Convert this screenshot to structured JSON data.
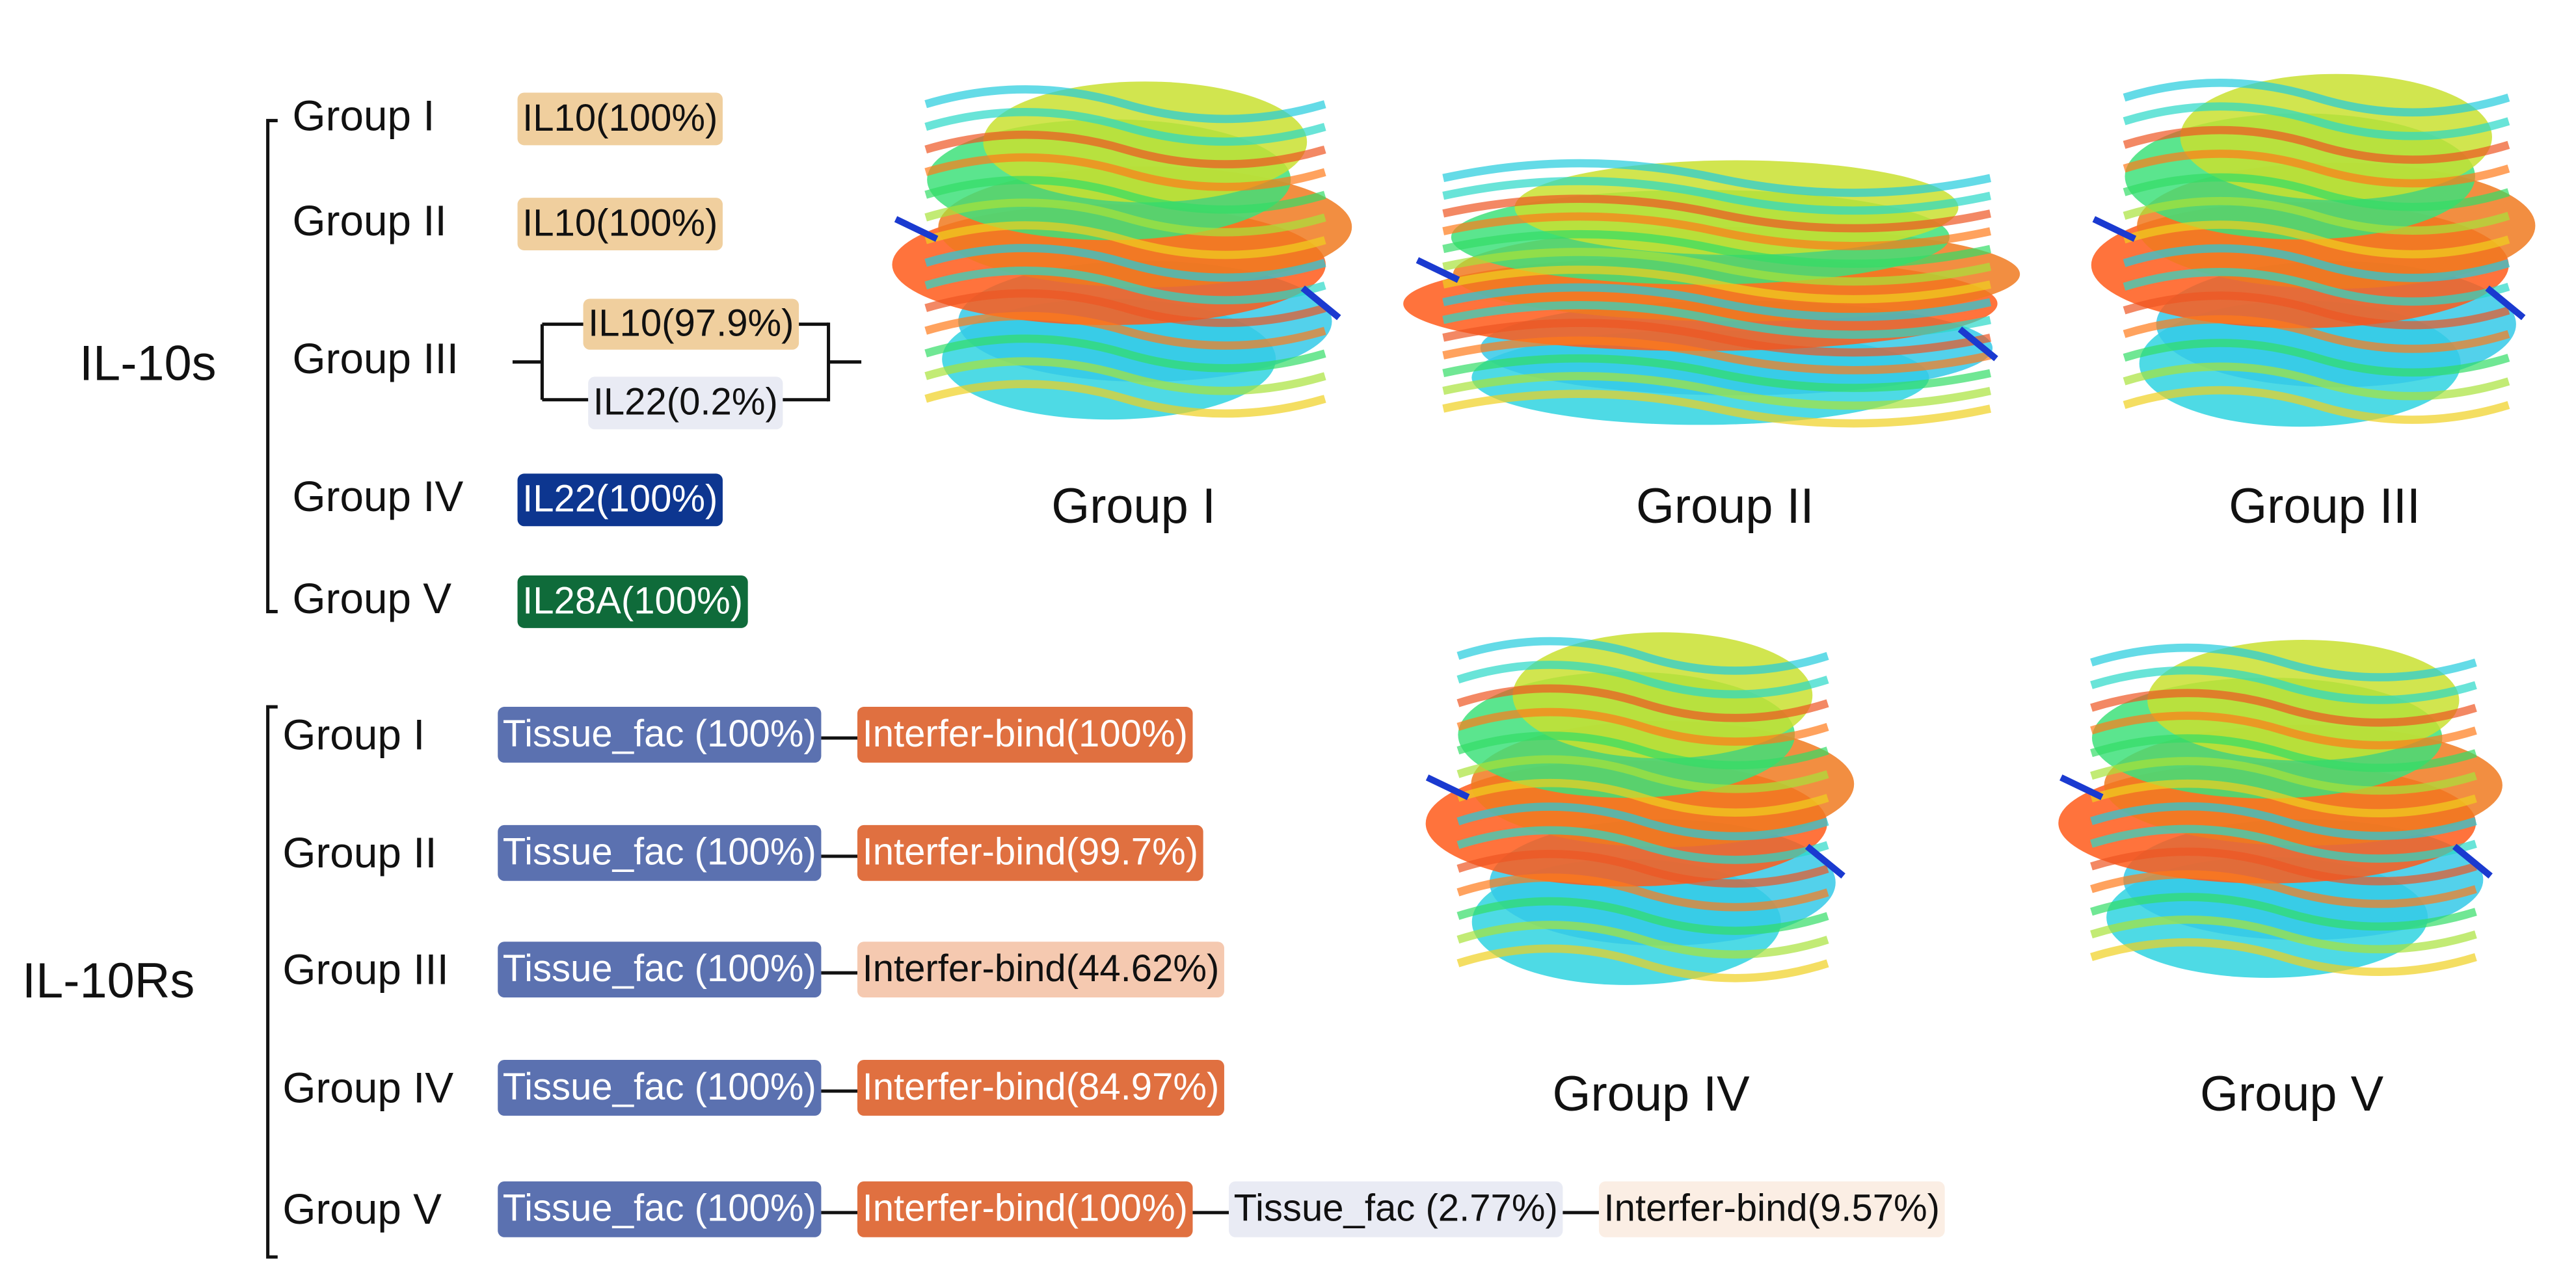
{
  "il10s": {
    "label": "IL-10s",
    "groups": [
      {
        "name": "Group I",
        "tags": [
          {
            "text": "IL10(100%)",
            "color": "#f0cf9e"
          }
        ]
      },
      {
        "name": "Group II",
        "tags": [
          {
            "text": "IL10(100%)",
            "color": "#f0cf9e"
          }
        ]
      },
      {
        "name": "Group III",
        "tags": [
          {
            "text": "IL10(97.9%)",
            "color": "#f0cf9e"
          },
          {
            "text": "IL22(0.2%)",
            "color": "#e9ebf4"
          }
        ]
      },
      {
        "name": "Group IV",
        "tags": [
          {
            "text": "IL22(100%)",
            "color": "#0d3690"
          }
        ]
      },
      {
        "name": "Group V",
        "tags": [
          {
            "text": "IL28A(100%)",
            "color": "#0f6b3a"
          }
        ]
      }
    ]
  },
  "il10rs": {
    "label": "IL-10Rs",
    "groups": [
      {
        "name": "Group I",
        "tags": [
          {
            "text": "Tissue_fac (100%)",
            "color": "#5b71b0"
          },
          {
            "text": "Interfer-bind(100%)",
            "color": "#e07040"
          }
        ]
      },
      {
        "name": "Group II",
        "tags": [
          {
            "text": "Tissue_fac (100%)",
            "color": "#5b71b0"
          },
          {
            "text": "Interfer-bind(99.7%)",
            "color": "#e07040"
          }
        ]
      },
      {
        "name": "Group III",
        "tags": [
          {
            "text": "Tissue_fac (100%)",
            "color": "#5b71b0"
          },
          {
            "text": "Interfer-bind(44.62%)",
            "color": "#f5c9b0"
          }
        ]
      },
      {
        "name": "Group IV",
        "tags": [
          {
            "text": "Tissue_fac (100%)",
            "color": "#5b71b0"
          },
          {
            "text": "Interfer-bind(84.97%)",
            "color": "#e07040"
          }
        ]
      },
      {
        "name": "Group V",
        "tags": [
          {
            "text": "Tissue_fac (100%)",
            "color": "#5b71b0"
          },
          {
            "text": "Interfer-bind(100%)",
            "color": "#e07040"
          },
          {
            "text": "Tissue_fac (2.77%)",
            "color": "#e9ebf4"
          },
          {
            "text": "Interfer-bind(9.57%)",
            "color": "#fbeee4"
          }
        ]
      }
    ]
  },
  "structures": [
    {
      "caption": "Group I"
    },
    {
      "caption": "Group II"
    },
    {
      "caption": "Group III"
    },
    {
      "caption": "Group IV"
    },
    {
      "caption": "Group V"
    }
  ]
}
